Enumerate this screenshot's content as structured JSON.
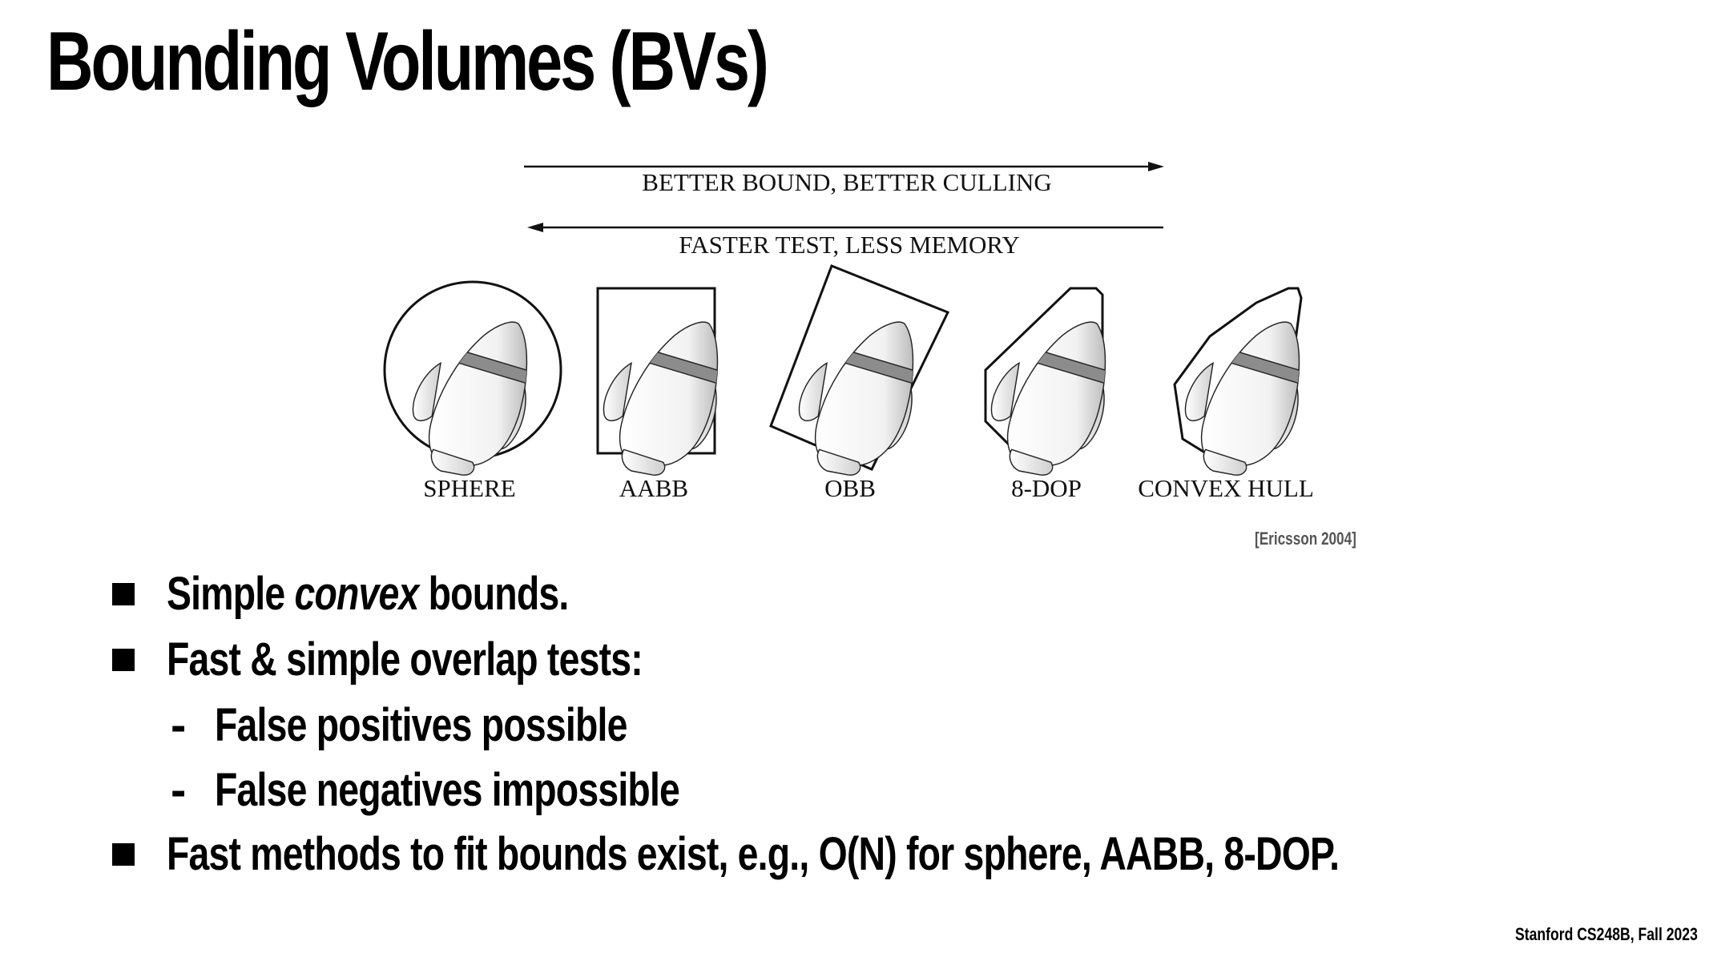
{
  "slide": {
    "title": "Bounding Volumes (BVs)",
    "credit": "[Ericsson 2004]",
    "footer": "Stanford CS248B, Fall 2023"
  },
  "figure": {
    "arrow_right_label": "BETTER BOUND, BETTER CULLING",
    "arrow_left_label": "FASTER TEST, LESS MEMORY",
    "shape_labels": [
      "SPHERE",
      "AABB",
      "OBB",
      "8-DOP",
      "CONVEX HULL"
    ]
  },
  "bullets": [
    {
      "level": 1,
      "pre": "Simple ",
      "em": "convex",
      "post": " bounds."
    },
    {
      "level": 1,
      "pre": "Fast & simple overlap tests:",
      "em": "",
      "post": ""
    },
    {
      "level": 2,
      "pre": "False positives possible",
      "em": "",
      "post": ""
    },
    {
      "level": 2,
      "pre": "False negatives impossible",
      "em": "",
      "post": ""
    },
    {
      "level": 1,
      "pre": "Fast methods to fit bounds exist, e.g., O(N) for sphere, AABB, 8-DOP.",
      "em": "",
      "post": ""
    }
  ]
}
